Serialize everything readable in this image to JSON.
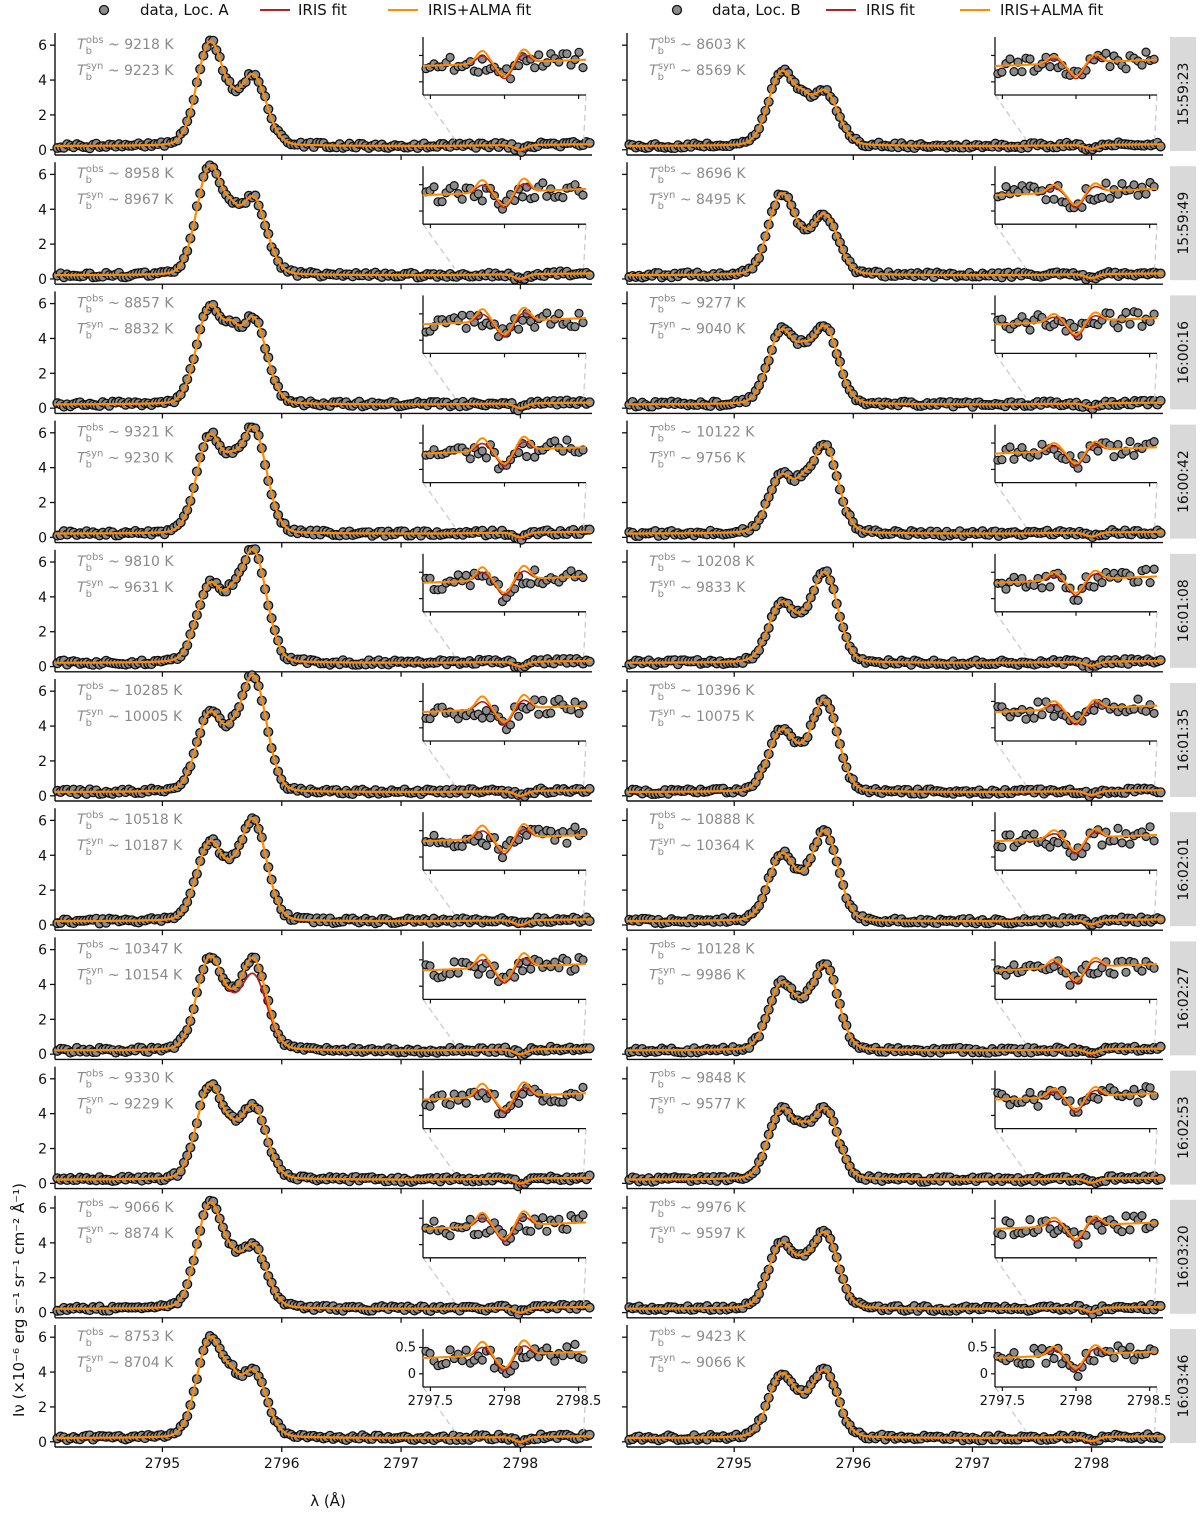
{
  "legend": {
    "left": {
      "data": "data, Loc. A",
      "iris": "IRIS fit",
      "alma": "IRIS+ALMA fit"
    },
    "right": {
      "data": "data, Loc. B",
      "iris": "IRIS fit",
      "alma": "IRIS+ALMA fit"
    }
  },
  "axes": {
    "xlabel": "λ (Å)",
    "ylabel": "Iν (×10⁻⁶ erg s⁻¹ sr⁻¹ cm⁻² Å⁻¹)",
    "xticks": [
      2795,
      2796,
      2797,
      2798
    ],
    "yticks": [
      0,
      2,
      4,
      6
    ],
    "inset_xticks": [
      2797.5,
      2798,
      2798.5
    ],
    "inset_yticks": [
      0,
      0.5
    ]
  },
  "colors": {
    "data_fill": "#8c8c8c",
    "data_edge": "#111111",
    "iris": "#b22222",
    "alma": "#ff8c00",
    "time_bg": "#d9d9d9",
    "temp_text": "#8a8a8a",
    "connector": "#cccccc"
  },
  "chart_data": {
    "type": "line",
    "x_range": [
      2794.1,
      2798.6
    ],
    "y_range": [
      -0.3,
      6.7
    ],
    "inset_x_range": [
      2797.45,
      2798.55
    ],
    "inset_y_range": [
      -0.25,
      0.85
    ],
    "timestamps": [
      "15:59:23",
      "15:59:49",
      "16:00:16",
      "16:00:42",
      "16:01:08",
      "16:01:35",
      "16:02:01",
      "16:02:27",
      "16:02:53",
      "16:03:20",
      "16:03:46"
    ],
    "location_A": [
      {
        "tobs": "9218 K",
        "tsyn": "9223 K",
        "k3": 2795.4,
        "k2v": 5.7,
        "k3min": 2.9,
        "k2r": 3.8
      },
      {
        "tobs": "8958 K",
        "tsyn": "8967 K",
        "k3": 2795.4,
        "k2v": 6.0,
        "k3min": 3.8,
        "k2r": 4.2
      },
      {
        "tobs": "8857 K",
        "tsyn": "8832 K",
        "k3": 2795.4,
        "k2v": 5.4,
        "k3min": 4.3,
        "k2r": 4.7
      },
      {
        "tobs": "9321 K",
        "tsyn": "9230 K",
        "k3": 2795.4,
        "k2v": 5.4,
        "k3min": 4.2,
        "k2r": 5.8
      },
      {
        "tobs": "9810 K",
        "tsyn": "9631 K",
        "k3": 2795.4,
        "k2v": 4.3,
        "k3min": 4.0,
        "k2r": 6.2
      },
      {
        "tobs": "10285 K",
        "tsyn": "10005 K",
        "k3": 2795.4,
        "k2v": 4.3,
        "k3min": 3.6,
        "k2r": 6.4
      },
      {
        "tobs": "10518 K",
        "tsyn": "10187 K",
        "k3": 2795.4,
        "k2v": 4.3,
        "k3min": 3.1,
        "k2r": 5.6
      },
      {
        "tobs": "10347 K",
        "tsyn": "10154 K",
        "k3": 2795.4,
        "k2v": 5.1,
        "k3min": 3.0,
        "k2r": 5.0
      },
      {
        "tobs": "9330 K",
        "tsyn": "9229 K",
        "k3": 2795.4,
        "k2v": 5.2,
        "k3min": 3.0,
        "k2r": 4.0
      },
      {
        "tobs": "9066 K",
        "tsyn": "8874 K",
        "k3": 2795.4,
        "k2v": 5.8,
        "k3min": 3.1,
        "k2r": 3.4
      },
      {
        "tobs": "8753 K",
        "tsyn": "8704 K",
        "k3": 2795.4,
        "k2v": 5.5,
        "k3min": 3.6,
        "k2r": 3.6
      }
    ],
    "location_B": [
      {
        "tobs": "8603 K",
        "tsyn": "8569 K",
        "k3": 2795.4,
        "k2v": 4.0,
        "k3min": 2.7,
        "k2r": 2.9
      },
      {
        "tobs": "8696 K",
        "tsyn": "8495 K",
        "k3": 2795.4,
        "k2v": 4.4,
        "k3min": 2.2,
        "k2r": 3.2
      },
      {
        "tobs": "9277 K",
        "tsyn": "9040 K",
        "k3": 2795.4,
        "k2v": 4.0,
        "k3min": 3.1,
        "k2r": 4.2
      },
      {
        "tobs": "10122 K",
        "tsyn": "9756 K",
        "k3": 2795.4,
        "k2v": 3.1,
        "k3min": 3.0,
        "k2r": 4.8
      },
      {
        "tobs": "10208 K",
        "tsyn": "9833 K",
        "k3": 2795.4,
        "k2v": 3.2,
        "k3min": 2.5,
        "k2r": 4.9
      },
      {
        "tobs": "10396 K",
        "tsyn": "10075 K",
        "k3": 2795.4,
        "k2v": 3.3,
        "k3min": 2.4,
        "k2r": 5.0
      },
      {
        "tobs": "10888 K",
        "tsyn": "10364 K",
        "k3": 2795.4,
        "k2v": 3.6,
        "k3min": 2.4,
        "k2r": 4.9
      },
      {
        "tobs": "10128 K",
        "tsyn": "9986 K",
        "k3": 2795.4,
        "k2v": 3.6,
        "k3min": 2.6,
        "k2r": 4.6
      },
      {
        "tobs": "9848 K",
        "tsyn": "9577 K",
        "k3": 2795.4,
        "k2v": 3.8,
        "k3min": 2.8,
        "k2r": 3.8
      },
      {
        "tobs": "9976 K",
        "tsyn": "9597 K",
        "k3": 2795.4,
        "k2v": 3.5,
        "k3min": 2.6,
        "k2r": 4.1
      },
      {
        "tobs": "9423 K",
        "tsyn": "9066 K",
        "k3": 2795.4,
        "k2v": 3.4,
        "k3min": 2.1,
        "k2r": 3.6
      }
    ]
  }
}
